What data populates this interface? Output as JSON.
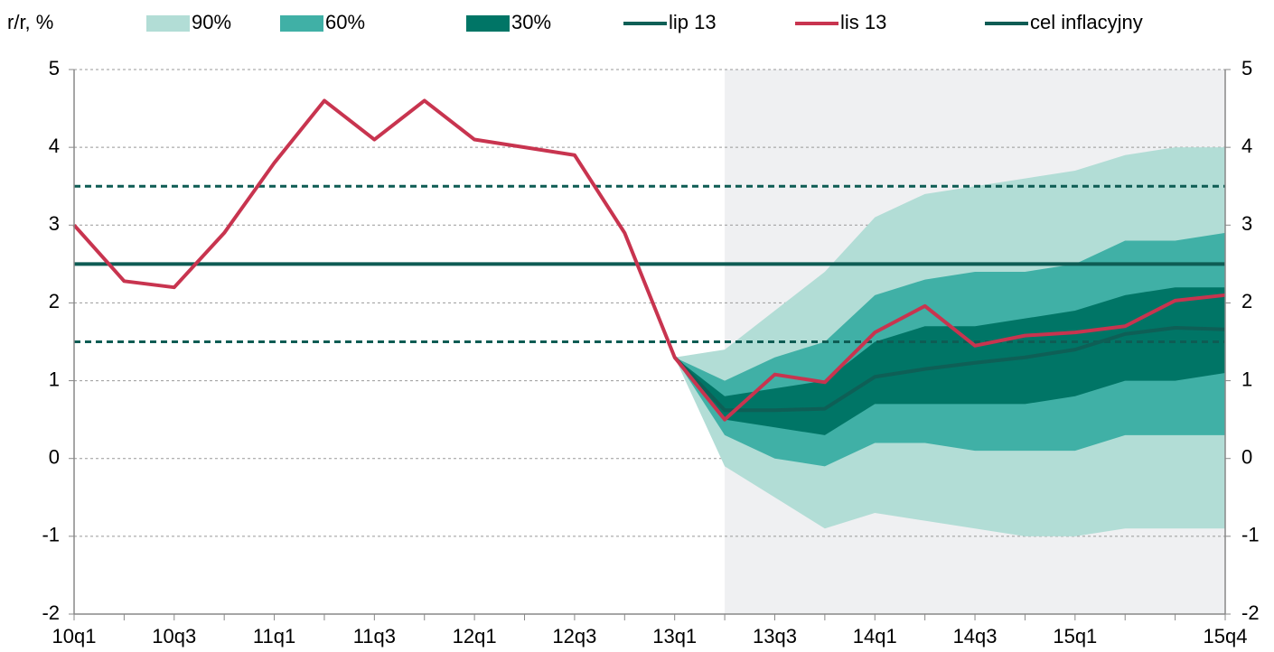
{
  "chart_data": {
    "type": "fan",
    "y_axis_label": "r/r, %",
    "categories": [
      "10q1",
      null,
      "10q3",
      null,
      "11q1",
      null,
      "11q3",
      null,
      "12q1",
      null,
      "12q3",
      null,
      "13q1",
      null,
      "13q3",
      null,
      "14q1",
      null,
      "14q3",
      null,
      "15q1",
      null,
      null,
      "15q4"
    ],
    "ylim": [
      -2,
      5
    ],
    "yticks": [
      -2,
      -1,
      0,
      1,
      2,
      3,
      4,
      5
    ],
    "grid": true,
    "shade_start_index": 13,
    "shade_color": "#eff0f2",
    "bands": [
      {
        "name": "90%",
        "color": "#b2ddd6",
        "upper": [
          null,
          null,
          null,
          null,
          null,
          null,
          null,
          null,
          null,
          null,
          null,
          null,
          1.3,
          1.4,
          1.9,
          2.4,
          3.1,
          3.4,
          3.5,
          3.6,
          3.7,
          3.9,
          4.0,
          4.0
        ],
        "lower": [
          null,
          null,
          null,
          null,
          null,
          null,
          null,
          null,
          null,
          null,
          null,
          null,
          1.3,
          -0.1,
          -0.5,
          -0.9,
          -0.7,
          -0.8,
          -0.9,
          -1.0,
          -1.0,
          -0.9,
          -0.9,
          -0.9
        ]
      },
      {
        "name": "60%",
        "color": "#40b0a6",
        "upper": [
          null,
          null,
          null,
          null,
          null,
          null,
          null,
          null,
          null,
          null,
          null,
          null,
          1.3,
          1.0,
          1.3,
          1.5,
          2.1,
          2.3,
          2.4,
          2.4,
          2.5,
          2.8,
          2.8,
          2.9
        ],
        "lower": [
          null,
          null,
          null,
          null,
          null,
          null,
          null,
          null,
          null,
          null,
          null,
          null,
          1.3,
          0.3,
          0.0,
          -0.1,
          0.2,
          0.2,
          0.1,
          0.1,
          0.1,
          0.3,
          0.3,
          0.3
        ]
      },
      {
        "name": "30%",
        "color": "#007566",
        "upper": [
          null,
          null,
          null,
          null,
          null,
          null,
          null,
          null,
          null,
          null,
          null,
          null,
          1.3,
          0.8,
          0.9,
          1.0,
          1.5,
          1.7,
          1.7,
          1.8,
          1.9,
          2.1,
          2.2,
          2.2
        ],
        "lower": [
          null,
          null,
          null,
          null,
          null,
          null,
          null,
          null,
          null,
          null,
          null,
          null,
          1.3,
          0.5,
          0.4,
          0.3,
          0.7,
          0.7,
          0.7,
          0.7,
          0.8,
          1.0,
          1.0,
          1.1
        ]
      }
    ],
    "tolerance": [
      1.5,
      3.5
    ],
    "tolerance_color": "#0e5c54",
    "series": [
      {
        "name": "lip 13",
        "color": "#0e5f56",
        "values": [
          null,
          null,
          null,
          null,
          null,
          null,
          null,
          null,
          null,
          null,
          null,
          null,
          1.3,
          0.62,
          0.62,
          0.64,
          1.05,
          1.15,
          1.23,
          1.3,
          1.4,
          1.6,
          1.68,
          1.66
        ]
      },
      {
        "name": "lis 13",
        "color": "#c8344f",
        "values": [
          3.0,
          2.28,
          2.2,
          2.9,
          3.8,
          4.6,
          4.1,
          4.6,
          4.1,
          4.0,
          3.9,
          2.9,
          1.3,
          0.5,
          1.08,
          0.98,
          1.62,
          1.96,
          1.45,
          1.58,
          1.62,
          1.7,
          2.03,
          2.1
        ]
      },
      {
        "name": "cel inflacyjny",
        "color": "#0e5c54",
        "value": 2.5
      }
    ]
  }
}
